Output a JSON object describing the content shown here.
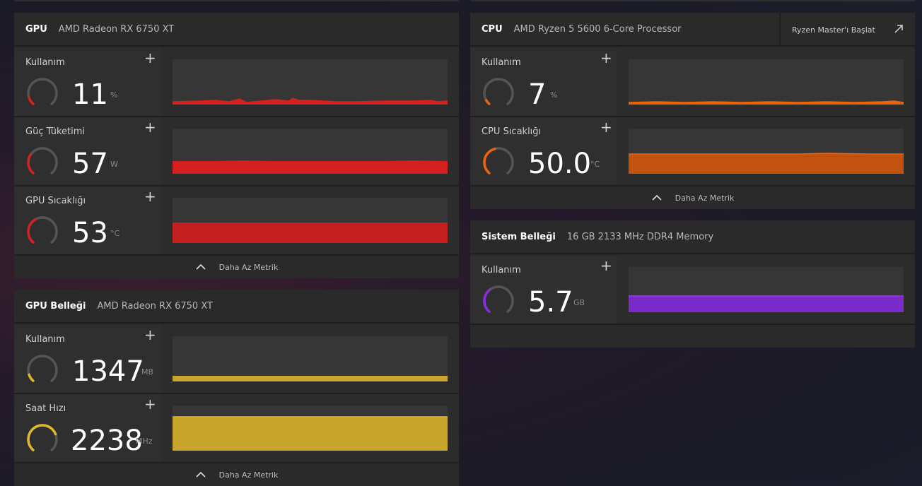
{
  "colors": {
    "gpu_red": "#d42020",
    "vram_yellow": "#e0b82a",
    "cpu_orange": "#e8650e",
    "memory_purple": "#8a2be2"
  },
  "gpu": {
    "title": "GPU",
    "subtitle": "AMD Radeon RX 6750 XT",
    "metrics": [
      {
        "label": "Kullanım",
        "value": "11",
        "unit": "%",
        "level": 0.11
      },
      {
        "label": "Güç Tüketimi",
        "value": "57",
        "unit": "W",
        "level": 0.3
      },
      {
        "label": "GPU Sıcaklığı",
        "value": "53",
        "unit": "°C",
        "level": 0.4
      }
    ],
    "footer": "Daha Az Metrik"
  },
  "vram": {
    "title": "GPU Belleği",
    "subtitle": "AMD Radeon RX 6750 XT",
    "metrics": [
      {
        "label": "Kullanım",
        "value": "1347",
        "unit": "MB",
        "level": 0.11
      },
      {
        "label": "Saat Hızı",
        "value": "2238",
        "unit": "MHz",
        "level": 0.75
      }
    ],
    "footer": "Daha Az Metrik"
  },
  "cpu": {
    "title": "CPU",
    "subtitle": "AMD Ryzen 5 5600 6-Core Processor",
    "action": "Ryzen Master'ı Başlat",
    "metrics": [
      {
        "label": "Kullanım",
        "value": "7",
        "unit": "%",
        "level": 0.07
      },
      {
        "label": "CPU Sıcaklığı",
        "value": "50.0",
        "unit": "°C",
        "level": 0.45
      }
    ],
    "footer": "Daha Az Metrik"
  },
  "memory": {
    "title": "Sistem Belleği",
    "subtitle": "16 GB 2133 MHz DDR4 Memory",
    "metrics": [
      {
        "label": "Kullanım",
        "value": "5.7",
        "unit": "GB",
        "level": 0.36
      }
    ]
  }
}
